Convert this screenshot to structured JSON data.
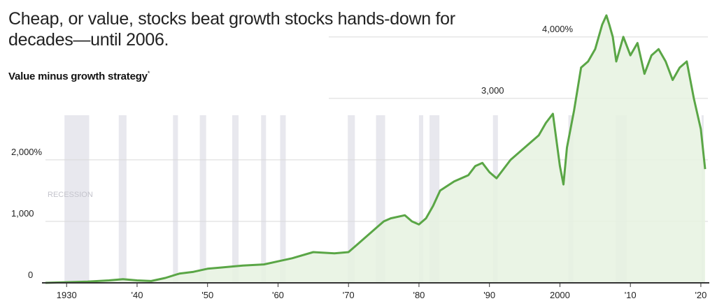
{
  "title": "Cheap, or value, stocks beat growth stocks hands-down for decades—until 2006.",
  "subtitle": "Value minus growth strategy",
  "subtitle_mark": "*",
  "recession_label": "RECESSION",
  "colors": {
    "line": "#5aa646",
    "fill": "#e6f2e1",
    "recession": "#e8e8ee",
    "grid": "#d9d9d9",
    "axis": "#333333"
  },
  "chart_data": {
    "type": "area",
    "title": "Cheap, or value, stocks beat growth stocks hands-down for decades—until 2006.",
    "ylabel": "Value minus growth strategy",
    "xlim": [
      1927,
      2021
    ],
    "ylim": [
      0,
      4600
    ],
    "grid": true,
    "x_ticks": [
      1930,
      1940,
      1950,
      1960,
      1970,
      1980,
      1990,
      2000,
      2010,
      2020
    ],
    "x_tick_labels": [
      "1930",
      "'40",
      "'50",
      "'60",
      "'70",
      "'80",
      "'90",
      "2000",
      "'10",
      "'20"
    ],
    "y_ticks": [
      0,
      1000,
      2000,
      3000,
      4000
    ],
    "y_tick_labels": [
      "0",
      "1,000",
      "2,000%",
      "3,000",
      "4,000%"
    ],
    "recessions": [
      [
        1929.7,
        1933.2
      ],
      [
        1937.4,
        1938.5
      ],
      [
        1945.1,
        1945.8
      ],
      [
        1948.9,
        1949.8
      ],
      [
        1953.5,
        1954.4
      ],
      [
        1957.6,
        1958.3
      ],
      [
        1960.3,
        1961.1
      ],
      [
        1969.9,
        1970.9
      ],
      [
        1973.9,
        1975.2
      ],
      [
        1980.0,
        1980.6
      ],
      [
        1981.5,
        1982.9
      ],
      [
        1990.5,
        1991.2
      ],
      [
        2001.2,
        2001.9
      ],
      [
        2007.9,
        2009.5
      ],
      [
        2020.1,
        2020.4
      ]
    ],
    "series": [
      {
        "x": [
          1927,
          1930,
          1933,
          1936,
          1938,
          1940,
          1942,
          1944,
          1946,
          1948,
          1950,
          1952,
          1955,
          1958,
          1960,
          1962,
          1965,
          1968,
          1970,
          1972,
          1974,
          1975,
          1976,
          1978,
          1979,
          1980,
          1981,
          1982,
          1983,
          1985,
          1987,
          1988,
          1989,
          1990,
          1991,
          1993,
          1995,
          1997,
          1998,
          1999,
          2000,
          2000.5,
          2001,
          2002,
          2003,
          2004,
          2005,
          2006,
          2006.6,
          2007,
          2007.5,
          2008,
          2009,
          2010,
          2011,
          2012,
          2013,
          2014,
          2015,
          2016,
          2017,
          2018,
          2019,
          2020,
          2020.6
        ],
        "y": [
          0,
          10,
          20,
          40,
          60,
          40,
          30,
          80,
          150,
          180,
          230,
          250,
          280,
          300,
          350,
          400,
          500,
          480,
          500,
          700,
          900,
          1000,
          1050,
          1100,
          1000,
          950,
          1050,
          1250,
          1500,
          1650,
          1750,
          1900,
          1950,
          1800,
          1700,
          2000,
          2200,
          2400,
          2600,
          2750,
          1900,
          1600,
          2200,
          2800,
          3500,
          3600,
          3800,
          4200,
          4350,
          4200,
          4000,
          3600,
          4000,
          3700,
          3900,
          3400,
          3700,
          3800,
          3600,
          3300,
          3500,
          3600,
          3000,
          2500,
          1850
        ]
      }
    ]
  }
}
